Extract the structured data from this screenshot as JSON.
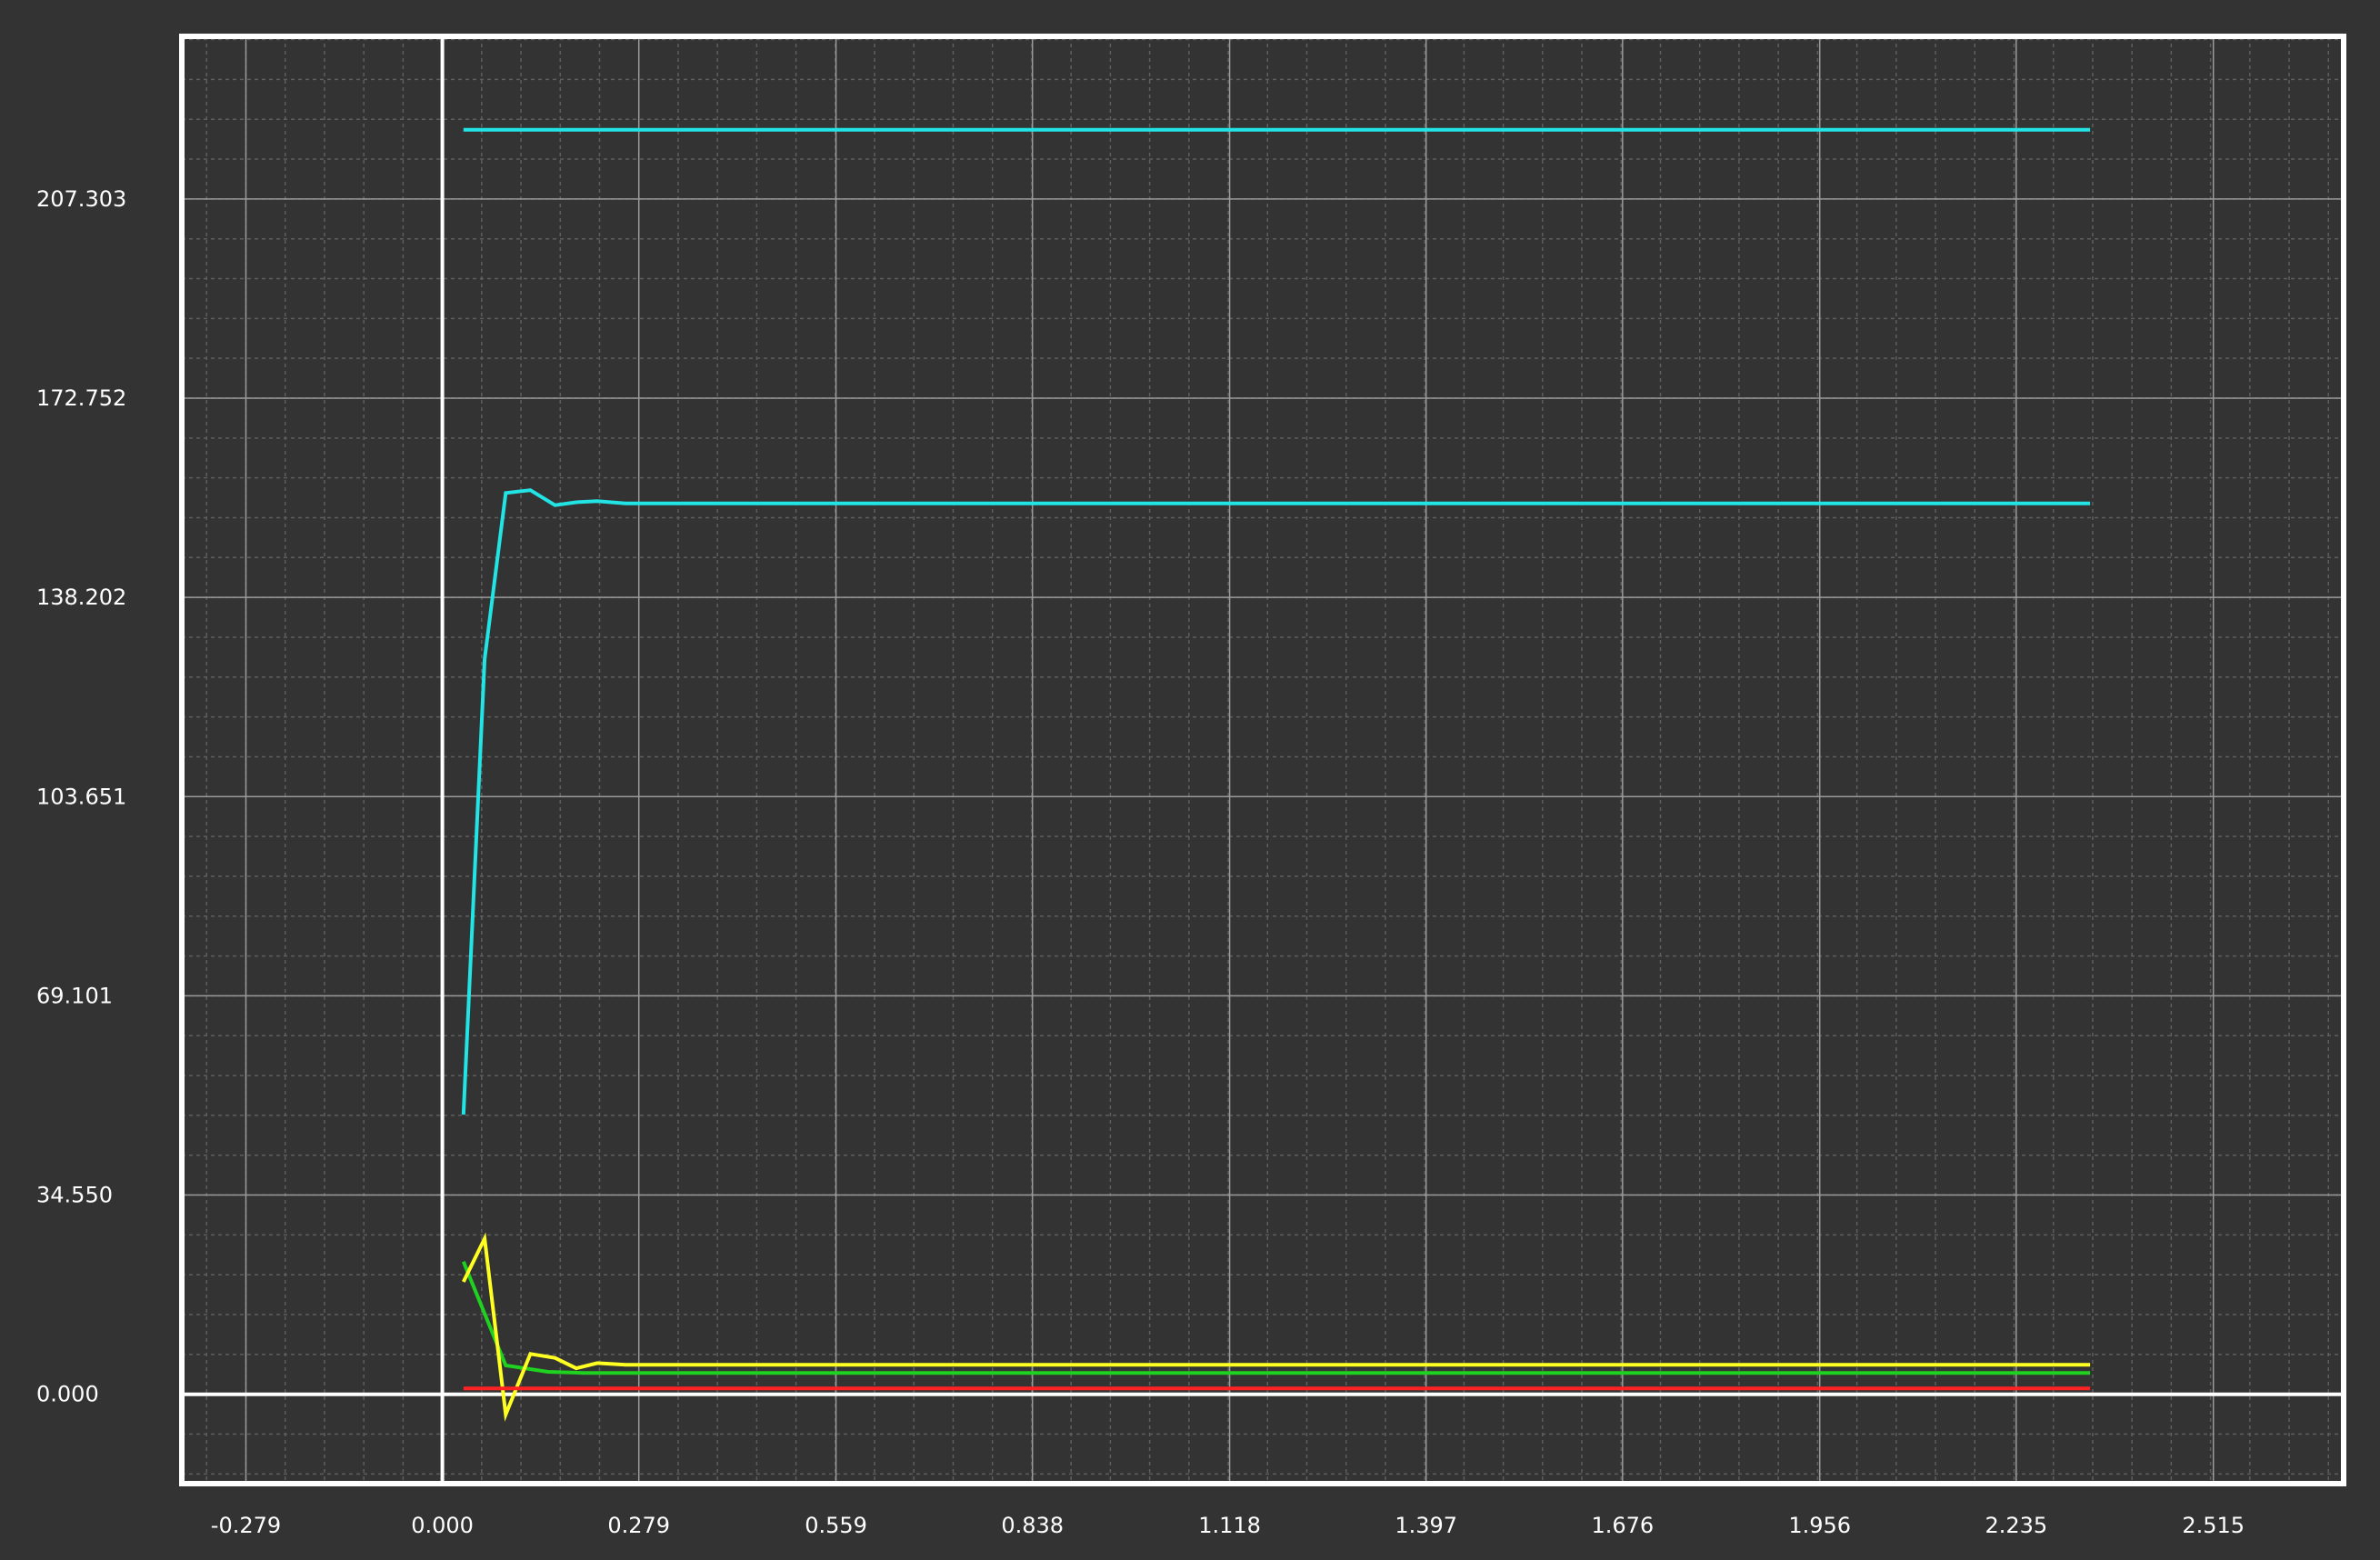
{
  "chart_data": {
    "type": "line",
    "title": "",
    "xlabel": "",
    "ylabel": "",
    "xlim": [
      -0.37,
      2.7
    ],
    "ylim": [
      -15.5,
      235.5
    ],
    "grid": true,
    "x_ticks": [
      "-0.279",
      "0.000",
      "0.279",
      "0.559",
      "0.838",
      "1.118",
      "1.397",
      "1.676",
      "1.956",
      "2.235",
      "2.515"
    ],
    "x_tick_values": [
      -0.279,
      0.0,
      0.279,
      0.559,
      0.838,
      1.118,
      1.397,
      1.676,
      1.956,
      2.235,
      2.515
    ],
    "y_ticks": [
      "0.000",
      "34.550",
      "69.101",
      "103.651",
      "138.202",
      "172.752",
      "207.303"
    ],
    "y_tick_values": [
      0.0,
      34.55,
      69.101,
      103.651,
      138.202,
      172.752,
      207.303
    ],
    "colors": {
      "background": "#333333",
      "frame": "#ffffff",
      "grid_major": "#9a9a9a",
      "grid_minor": "#5e5e5e"
    },
    "series": [
      {
        "color": "#22e4e4",
        "x": [
          0.03,
          2.34
        ],
        "y": [
          219.3,
          219.3
        ]
      },
      {
        "color": "#22e4e4",
        "x": [
          0.03,
          0.06,
          0.09,
          0.125,
          0.16,
          0.19,
          0.22,
          0.26,
          2.34
        ],
        "y": [
          48.5,
          127.5,
          156.3,
          156.8,
          154.2,
          154.7,
          154.9,
          154.5,
          154.5
        ]
      },
      {
        "color": "#1fd21f",
        "x": [
          0.03,
          0.09,
          0.15,
          0.2,
          0.26,
          2.34
        ],
        "y": [
          23.0,
          5.0,
          3.9,
          3.7,
          3.7,
          3.7
        ]
      },
      {
        "color": "#ffff22",
        "x": [
          0.03,
          0.06,
          0.09,
          0.125,
          0.16,
          0.19,
          0.22,
          0.26,
          2.34
        ],
        "y": [
          19.5,
          27.0,
          -3.5,
          7.0,
          6.3,
          4.5,
          5.4,
          5.1,
          5.1
        ]
      },
      {
        "color": "#ff2222",
        "x": [
          0.03,
          2.34
        ],
        "y": [
          1.0,
          1.0
        ]
      }
    ]
  }
}
